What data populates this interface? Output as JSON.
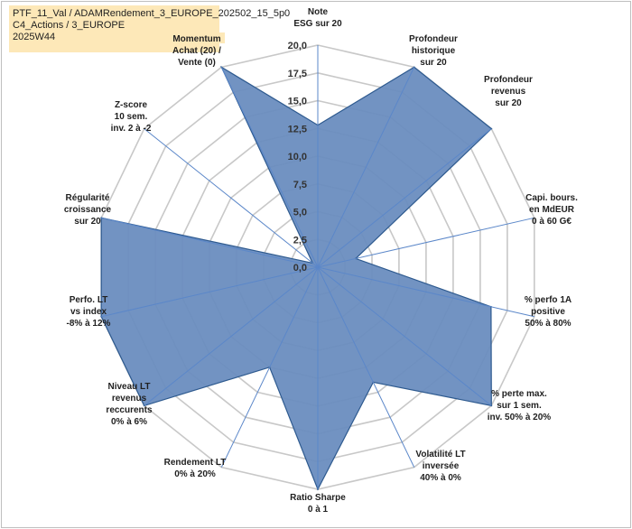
{
  "header": {
    "title_lines": [
      "PTF_11_Val / ADAMRendement_3_EUROPE_202502_15_5p0",
      "C4_Actions / 3_EUROPE",
      "2025W44"
    ]
  },
  "chart_data": {
    "type": "radar",
    "axes": [
      [
        "Note",
        "ESG sur 20"
      ],
      [
        "Profondeur",
        "historique",
        "sur 20"
      ],
      [
        "Profondeur",
        "revenus",
        "sur 20"
      ],
      [
        "Capi. bours.",
        "en MdEUR",
        "0 à 60 G€"
      ],
      [
        "% perfo 1A",
        "positive",
        "50% à 80%"
      ],
      [
        "% perte max.",
        "sur 1 sem.",
        "inv. 50% à 20%"
      ],
      [
        "Volatilité LT",
        "inversée",
        "40% à 0%"
      ],
      [
        "Ratio Sharpe",
        "0 à 1"
      ],
      [
        "Rendement LT",
        "0% à 20%"
      ],
      [
        "Niveau LT",
        "revenus",
        "reccurents",
        "0% à 6%"
      ],
      [
        "Perfo. LT",
        "vs index",
        "-8% à 12%"
      ],
      [
        "Régularité",
        "croissance",
        "sur 20"
      ],
      [
        "Z-score",
        "10 sem.",
        "inv. 2 à -2"
      ],
      [
        "Momentum",
        "Achat (20) /",
        "Vente (0)"
      ]
    ],
    "values": [
      12.8,
      20,
      20,
      3.5,
      16,
      20,
      11.5,
      20,
      10,
      20,
      20,
      20,
      0.6,
      20
    ],
    "rlim": [
      0,
      20
    ],
    "ticks": [
      "0,0",
      "2,5",
      "5,0",
      "7,5",
      "10,0",
      "12,5",
      "15,0",
      "17,5",
      "20,0"
    ],
    "tick_values": [
      0,
      2.5,
      5,
      7.5,
      10,
      12.5,
      15,
      17.5,
      20
    ],
    "grid": true,
    "colors": {
      "fill": "#6a8dbf",
      "line": "#2e5a8f",
      "grid": "#c8c8c8",
      "spoke": "#5b87c9",
      "label_highlight": "#fde8b8"
    }
  }
}
